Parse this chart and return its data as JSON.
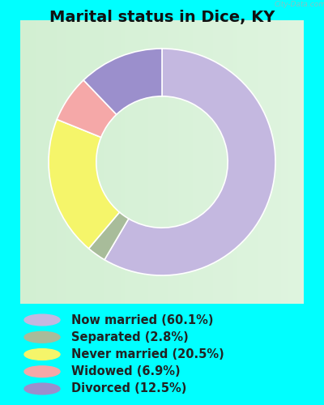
{
  "title": "Marital status in Dice, KY",
  "categories": [
    "Now married",
    "Separated",
    "Never married",
    "Widowed",
    "Divorced"
  ],
  "values": [
    60.1,
    2.8,
    20.5,
    6.9,
    12.5
  ],
  "colors": [
    "#c4b8e0",
    "#a8bc9a",
    "#f5f56a",
    "#f5a8a8",
    "#9b8fcc"
  ],
  "legend_labels": [
    "Now married (60.1%)",
    "Separated (2.8%)",
    "Never married (20.5%)",
    "Widowed (6.9%)",
    "Divorced (12.5%)"
  ],
  "legend_colors": [
    "#c4b8e0",
    "#a8bc9a",
    "#f5f56a",
    "#f5a8a8",
    "#9b8fcc"
  ],
  "bg_color": "#00ffff",
  "chart_bg_left": "#c8e8c8",
  "chart_bg_right": "#f0f8f0",
  "donut_width": 0.42,
  "title_fontsize": 14,
  "title_color": "#111111",
  "legend_fontsize": 10.5,
  "watermark": "City-Data.com"
}
